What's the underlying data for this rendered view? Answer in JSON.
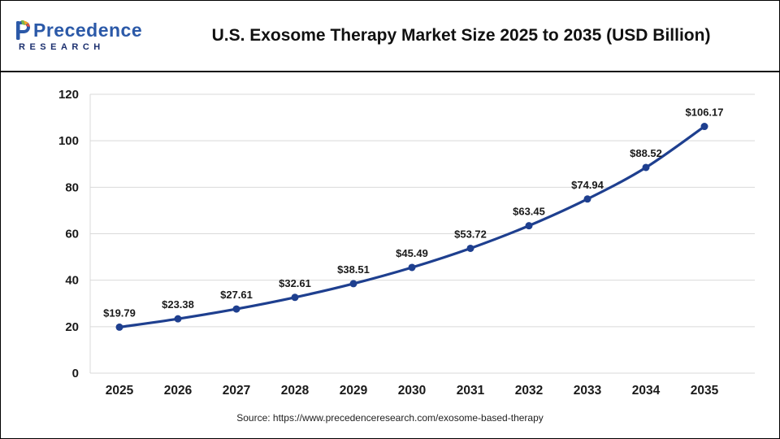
{
  "header": {
    "title": "U.S. Exosome Therapy Market Size 2025 to 2035 (USD Billion)",
    "logo": {
      "name": "Precedence",
      "subtitle": "RESEARCH"
    }
  },
  "chart_data": {
    "type": "line",
    "title": "U.S. Exosome Therapy Market Size 2025 to 2035 (USD Billion)",
    "categories": [
      "2025",
      "2026",
      "2027",
      "2028",
      "2029",
      "2030",
      "2031",
      "2032",
      "2033",
      "2034",
      "2035"
    ],
    "values": [
      19.79,
      23.38,
      27.61,
      32.61,
      38.51,
      45.49,
      53.72,
      63.45,
      74.94,
      88.52,
      106.17
    ],
    "point_labels": [
      "$19.79",
      "$23.38",
      "$27.61",
      "$32.61",
      "$38.51",
      "$45.49",
      "$53.72",
      "$63.45",
      "$74.94",
      "$88.52",
      "$106.17"
    ],
    "xlabel": "",
    "ylabel": "",
    "ylim": [
      0,
      120
    ],
    "yticks": [
      0,
      20,
      40,
      60,
      80,
      100,
      120
    ],
    "grid": true,
    "legend": "none",
    "line_color": "#1e3f8f",
    "marker_color": "#1e3f8f",
    "label_color": "#1a1a1a",
    "axis_label_color": "#1a1a1a",
    "grid_color": "#d9d9d9"
  },
  "footer": {
    "source": "Source: https://www.precedenceresearch.com/exosome-based-therapy"
  }
}
